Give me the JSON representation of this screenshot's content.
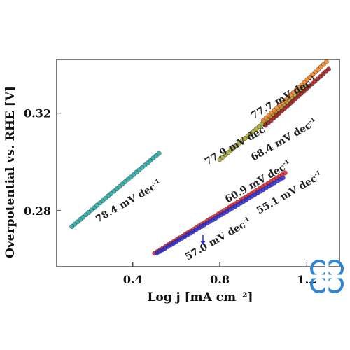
{
  "chart_data": {
    "type": "scatter",
    "title": "",
    "xlabel": "Log j [mA cm⁻²]",
    "ylabel": "Overpotential vs. RHE [V]",
    "xlim": [
      0.05,
      1.35
    ],
    "ylim": [
      0.257,
      0.342
    ],
    "xticks": [
      0.4,
      0.8,
      1.2
    ],
    "xtick_labels": [
      "0.4",
      "0.8",
      "1.2"
    ],
    "yticks": [
      0.28,
      0.32
    ],
    "ytick_labels": [
      "0.28",
      "0.32"
    ],
    "grid": false,
    "series": [
      {
        "color": "#1fa6a0",
        "x_start": 0.12,
        "x_end": 0.52,
        "y_start": 0.2735,
        "y_end": 0.3035
      },
      {
        "color": "#e02020",
        "x_start": 0.5,
        "x_end": 1.1,
        "y_start": 0.2625,
        "y_end": 0.2955
      },
      {
        "color": "#2a2ad8",
        "x_start": 0.51,
        "x_end": 1.09,
        "y_start": 0.2625,
        "y_end": 0.2935
      },
      {
        "color": "#a6a62a",
        "x_start": 0.8,
        "x_end": 1.2,
        "y_start": 0.301,
        "y_end": 0.331
      },
      {
        "color": "#f08020",
        "x_start": 1.0,
        "x_end": 1.29,
        "y_start": 0.317,
        "y_end": 0.341
      },
      {
        "color": "#9a1616",
        "x_start": 1.01,
        "x_end": 1.3,
        "y_start": 0.315,
        "y_end": 0.338
      }
    ],
    "annotations": [
      {
        "text": "78.4 mV dec",
        "sup": "-1"
      },
      {
        "text": "57.0 mV dec",
        "sup": "-1"
      },
      {
        "text": "60.9 mV dec",
        "sup": "-1"
      },
      {
        "text": "55.1 mV dec",
        "sup": "-1"
      },
      {
        "text": "77.9 mV dec",
        "sup": "-1"
      },
      {
        "text": "68.4 mV dec",
        "sup": "-1"
      },
      {
        "text": "77.7 mV dec",
        "sup": "-1"
      }
    ]
  },
  "logo": {
    "name": "watermark-logo-icon"
  }
}
